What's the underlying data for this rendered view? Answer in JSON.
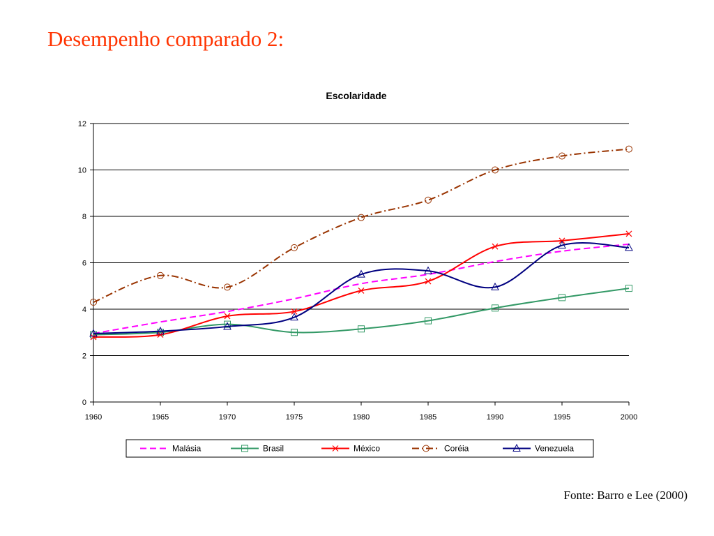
{
  "slide": {
    "title": "Desempenho comparado 2:",
    "source": "Fonte: Barro e Lee (2000)"
  },
  "colors": {
    "title": "#ff3300",
    "malasia": "#ff00ff",
    "brasil": "#339966",
    "mexico": "#ff0000",
    "coreia": "#993300",
    "venezuela": "#000080"
  },
  "chart_data": {
    "type": "line",
    "title": "Escolaridade",
    "xlabel": "",
    "ylabel": "",
    "x": [
      1960,
      1965,
      1970,
      1975,
      1980,
      1985,
      1990,
      1995,
      2000
    ],
    "xlim": [
      1960,
      2000
    ],
    "ylim": [
      0,
      12
    ],
    "yticks": [
      0,
      2,
      4,
      6,
      8,
      10,
      12
    ],
    "grid": "horizontal",
    "legend": "bottom",
    "series": [
      {
        "name": "Malásia",
        "values": [
          2.95,
          3.45,
          3.9,
          4.45,
          5.1,
          5.5,
          6.05,
          6.5,
          6.8
        ],
        "color": "#ff00ff",
        "dash": "dashed",
        "marker": "none"
      },
      {
        "name": "Brasil",
        "values": [
          2.9,
          3.0,
          3.35,
          3.0,
          3.15,
          3.5,
          4.05,
          4.5,
          4.9
        ],
        "color": "#339966",
        "dash": "solid",
        "marker": "square"
      },
      {
        "name": "México",
        "values": [
          2.8,
          2.9,
          3.7,
          3.9,
          4.8,
          5.2,
          6.7,
          6.95,
          7.25
        ],
        "color": "#ff0000",
        "dash": "solid",
        "marker": "x"
      },
      {
        "name": "Coréia",
        "values": [
          4.3,
          5.45,
          4.95,
          6.65,
          7.95,
          8.7,
          10.0,
          10.6,
          10.9
        ],
        "color": "#993300",
        "dash": "dashdot",
        "marker": "circle"
      },
      {
        "name": "Venezuela",
        "values": [
          2.95,
          3.05,
          3.25,
          3.65,
          5.5,
          5.65,
          4.95,
          6.75,
          6.65
        ],
        "color": "#000080",
        "dash": "solid",
        "marker": "triangle"
      }
    ]
  }
}
